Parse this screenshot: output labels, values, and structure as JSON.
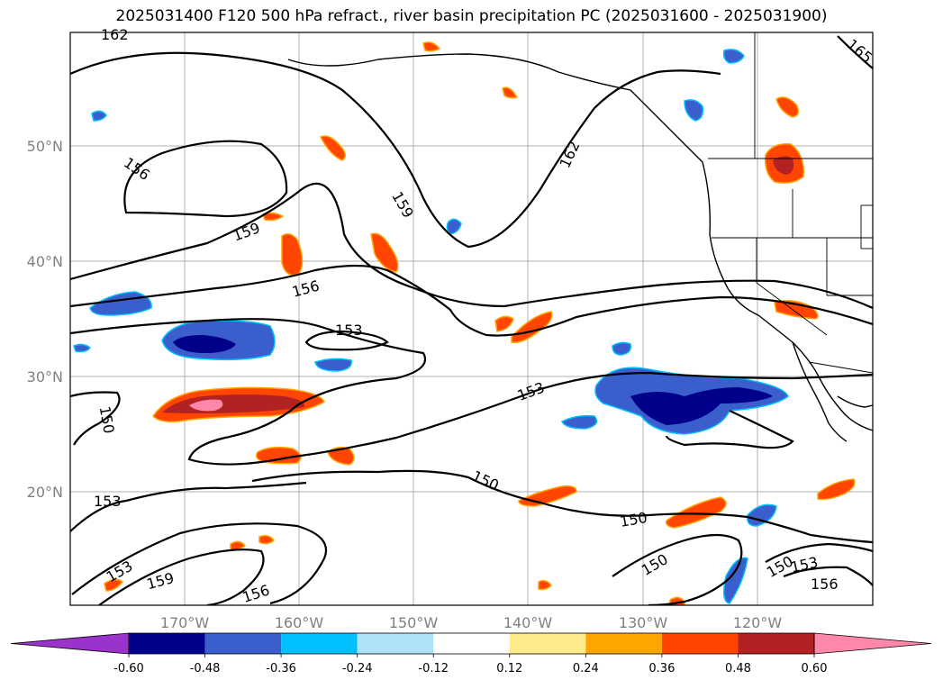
{
  "title": "2025031400 F120 500 hPa refract., river basin precipitation PC (2025031600 - 2025031900)",
  "lat_labels": [
    "20°N",
    "30°N",
    "40°N",
    "50°N"
  ],
  "lon_labels": [
    "170°W",
    "160°W",
    "150°W",
    "140°W",
    "130°W",
    "120°W"
  ],
  "contour_labels": [
    "162",
    "165",
    "156",
    "162",
    "159",
    "159",
    "156",
    "153",
    "153",
    "150",
    "153",
    "150",
    "150",
    "150",
    "150",
    "153",
    "153",
    "159",
    "156",
    "156"
  ],
  "colorbar": {
    "ticks": [
      "-0.60",
      "-0.48",
      "-0.36",
      "-0.24",
      "-0.12",
      "0.12",
      "0.24",
      "0.36",
      "0.48",
      "0.60"
    ],
    "colors": [
      "#9933cc",
      "#00008b",
      "#3a5fcd",
      "#00bfff",
      "#afe3fa",
      "#ffffff",
      "#ffeb8c",
      "#ffa500",
      "#ff4500",
      "#b22222",
      "#ff88aa"
    ]
  }
}
